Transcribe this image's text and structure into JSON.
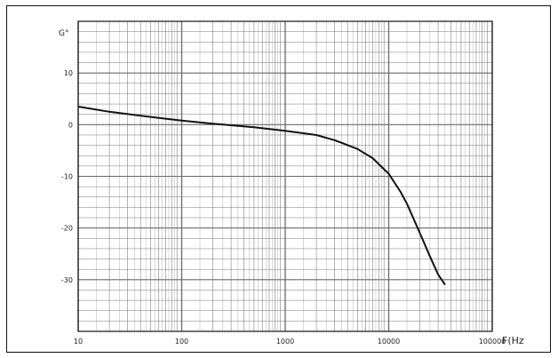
{
  "chart_data": {
    "type": "line",
    "title": "",
    "ylabel": "G°",
    "xlabel": "F(Hz",
    "x_scale": "log",
    "xlim": [
      10,
      100000
    ],
    "ylim": [
      -40,
      20
    ],
    "grid": true,
    "x_ticks": [
      "10",
      "100",
      "1000",
      "10000",
      "100000"
    ],
    "y_ticks": [
      "10",
      "0",
      "-10",
      "-20",
      "-30"
    ],
    "series": [
      {
        "x": [
          10,
          20,
          50,
          100,
          200,
          500,
          1000,
          2000,
          3000,
          5000,
          7000,
          10000,
          13000,
          15000,
          20000,
          25000,
          30000,
          35000
        ],
        "values": [
          3.5,
          2.5,
          1.5,
          0.8,
          0.2,
          -0.5,
          -1.2,
          -2.0,
          -3.0,
          -4.7,
          -6.5,
          -9.5,
          -13.0,
          -15.3,
          -21.0,
          -25.5,
          -29.0,
          -31.0
        ]
      }
    ]
  },
  "colors": {
    "line": "#111111",
    "grid": "#6a6a6a",
    "frame": "#111111"
  }
}
